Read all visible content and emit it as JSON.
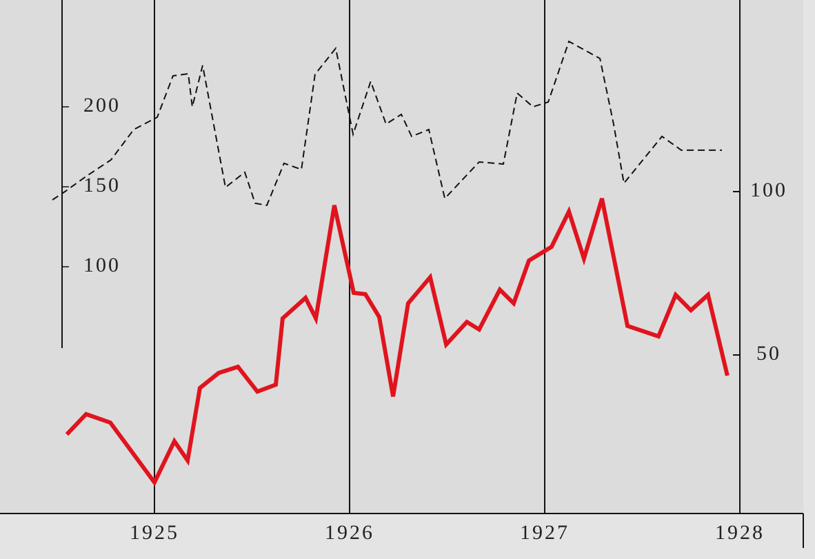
{
  "chart_data": {
    "type": "line",
    "xlim": [
      1924.2085,
      1928.385
    ],
    "xticks": [
      1925,
      1926,
      1927,
      1928
    ],
    "ylim": [
      -54.3,
      266.8
    ],
    "yticks": [
      100,
      150,
      200
    ],
    "y2lim": [
      1.48,
      158.65
    ],
    "y2ticks": [
      50,
      100
    ],
    "grid": true,
    "series": [
      {
        "color": "#111111",
        "line_style": "dashed",
        "axis": "y",
        "x": [
          1924.477,
          1924.541,
          1924.654,
          1924.777,
          1924.894,
          1925.014,
          1925.095,
          1925.173,
          1925.194,
          1925.247,
          1925.364,
          1925.463,
          1925.516,
          1925.576,
          1925.664,
          1925.753,
          1925.823,
          1925.929,
          1926.018,
          1926.108,
          1926.187,
          1926.265,
          1926.318,
          1926.406,
          1926.488,
          1926.664,
          1926.788,
          1926.859,
          1926.94,
          1927.018,
          1927.124,
          1927.283,
          1927.353,
          1927.406,
          1927.601,
          1927.7,
          1927.908
        ],
        "values": [
          141.8,
          147,
          156.9,
          166.8,
          185.8,
          193.5,
          219.4,
          220.7,
          200,
          225.9,
          149.6,
          159.1,
          139.7,
          138.4,
          164.7,
          160.8,
          220.3,
          236.6,
          182.8,
          215.9,
          189.2,
          195.3,
          181.5,
          185.8,
          142.7,
          165.5,
          164.2,
          208.6,
          200,
          203,
          240.9,
          230.2,
          189.2,
          152.2,
          181.5,
          172.9,
          172.9
        ]
      },
      {
        "color": "#e0141e",
        "line_style": "solid",
        "axis": "y2",
        "x": [
          1924.551,
          1924.65,
          1924.774,
          1925.0,
          1925.102,
          1925.17,
          1925.233,
          1925.329,
          1925.428,
          1925.527,
          1925.622,
          1925.657,
          1925.774,
          1925.827,
          1925.922,
          1926.021,
          1926.081,
          1926.152,
          1926.223,
          1926.3,
          1926.413,
          1926.495,
          1926.601,
          1926.664,
          1926.77,
          1926.841,
          1926.919,
          1927.035,
          1927.124,
          1927.201,
          1927.293,
          1927.424,
          1927.583,
          1927.671,
          1927.749,
          1927.837,
          1927.936
        ],
        "values": [
          25.7,
          31.9,
          29.3,
          11.0,
          23.6,
          17.7,
          39.9,
          44.5,
          46.4,
          38.8,
          40.9,
          61.2,
          67.5,
          61.2,
          95.8,
          69.0,
          68.6,
          61.6,
          37.3,
          65.8,
          73.8,
          53.2,
          60.1,
          57.8,
          70.0,
          65.8,
          78.9,
          83.1,
          93.9,
          79.5,
          97.9,
          58.9,
          55.7,
          68.4,
          63.7,
          68.4,
          43.7
        ]
      }
    ]
  }
}
